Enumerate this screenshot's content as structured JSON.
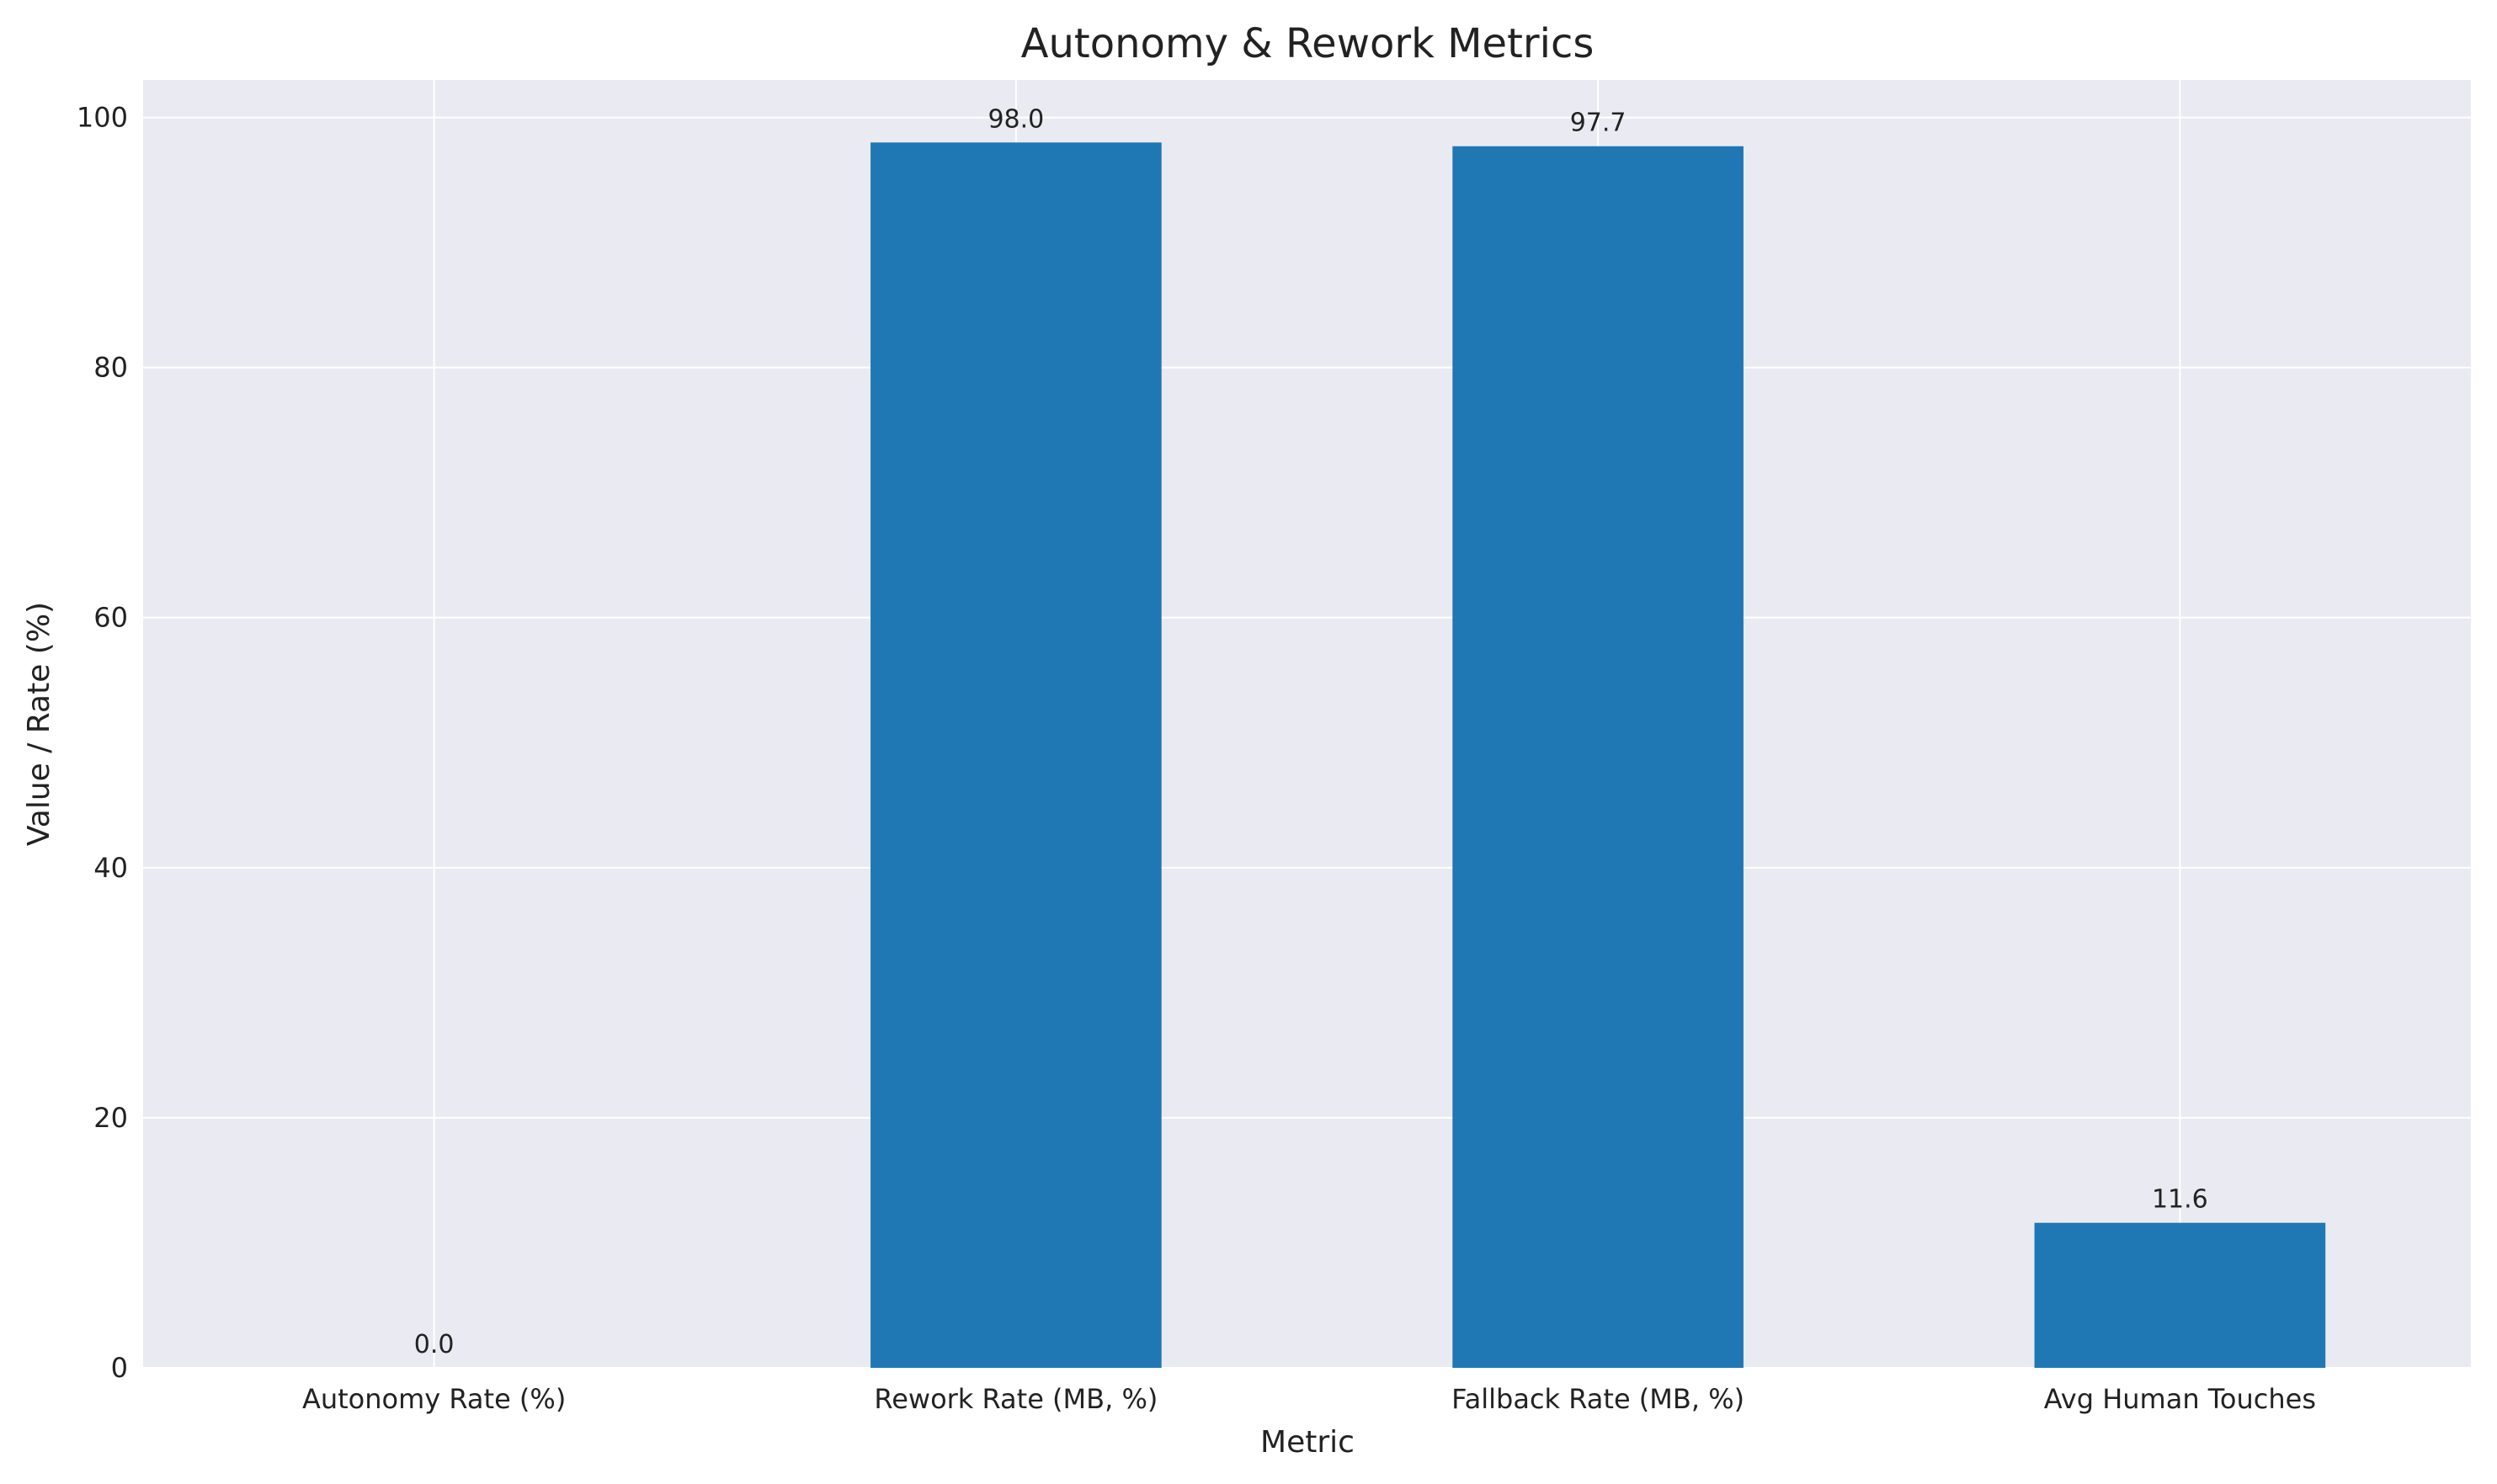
{
  "chart_data": {
    "type": "bar",
    "title": "Autonomy & Rework Metrics",
    "xlabel": "Metric",
    "ylabel": "Value / Rate (%)",
    "categories": [
      "Autonomy Rate (%)",
      "Rework Rate (MB, %)",
      "Fallback Rate (MB, %)",
      "Avg Human Touches"
    ],
    "values": [
      0.0,
      98.0,
      97.7,
      11.6
    ],
    "data_labels": [
      "0.0",
      "98.0",
      "97.7",
      "11.6"
    ],
    "yticks": [
      0,
      20,
      40,
      60,
      80,
      100
    ],
    "ytick_labels": [
      "0",
      "20",
      "40",
      "60",
      "80",
      "100"
    ],
    "ylim": [
      0,
      103
    ],
    "grid": true,
    "colors": {
      "bar": "#1f77b4",
      "plot_background": "#eaeaf2",
      "grid": "#ffffff",
      "text": "#222222"
    }
  }
}
